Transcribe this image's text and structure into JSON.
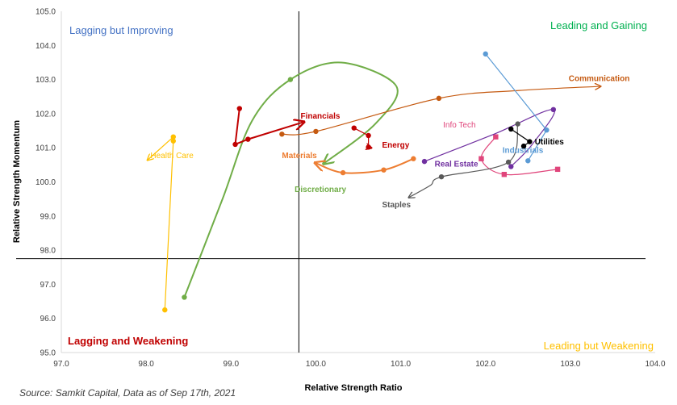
{
  "chart_data": {
    "type": "scatter",
    "title": "",
    "xlabel": "Relative Strength Ratio",
    "ylabel": "Relative Strength Momentum",
    "xlim": [
      97.0,
      104.0
    ],
    "ylim": [
      95.0,
      105.0
    ],
    "xticks": [
      "97.0",
      "98.0",
      "99.0",
      "100.0",
      "101.0",
      "102.0",
      "103.0",
      "104.0"
    ],
    "yticks": [
      "95.0",
      "96.0",
      "97.0",
      "98.0",
      "99.0",
      "100.0",
      "101.0",
      "102.0",
      "103.0",
      "104.0",
      "105.0"
    ],
    "crosshair": {
      "x": 99.8,
      "y": 97.75
    },
    "grid": false,
    "quadrants": [
      {
        "name": "Lagging but Improving",
        "position": "top-left",
        "color": "#4472C4"
      },
      {
        "name": "Leading and Gaining",
        "position": "top-right",
        "color": "#00B050"
      },
      {
        "name": "Lagging and Weakening",
        "position": "bottom-left",
        "color": "#C00000"
      },
      {
        "name": "Leading but Weakening",
        "position": "bottom-right",
        "color": "#FFC000"
      }
    ],
    "series": [
      {
        "name": "Health Care",
        "color": "#FFC000",
        "marker": "circle",
        "points": [
          [
            98.22,
            96.25
          ],
          [
            98.32,
            101.2
          ],
          [
            98.32,
            101.32
          ]
        ],
        "arrow_end": [
          98.02,
          100.65
        ],
        "label_at": [
          98.05,
          100.7
        ]
      },
      {
        "name": "Discretionary",
        "color": "#70AD47",
        "marker": "circle",
        "points": [
          [
            98.45,
            96.62
          ],
          [
            99.7,
            103.0
          ]
        ],
        "arrow_end": [
          100.1,
          100.55
        ],
        "label_at": [
          99.75,
          99.7
        ]
      },
      {
        "name": "Financials",
        "color": "#C00000",
        "marker": "circle",
        "points": [
          [
            99.1,
            102.15
          ],
          [
            99.05,
            101.1
          ],
          [
            99.2,
            101.25
          ]
        ],
        "arrow_end": [
          99.85,
          101.75
        ],
        "label_at": [
          99.82,
          101.85
        ]
      },
      {
        "name": "Communication",
        "color": "#C55A11",
        "marker": "circle",
        "points": [
          [
            99.6,
            101.4
          ],
          [
            100.0,
            101.48
          ],
          [
            101.45,
            102.45
          ]
        ],
        "arrow_end": [
          103.35,
          102.8
        ],
        "label_at": [
          102.98,
          102.95
        ]
      },
      {
        "name": "Energy",
        "color": "#C00000",
        "marker": "circle",
        "points": [
          [
            100.45,
            101.58
          ],
          [
            100.62,
            101.36
          ],
          [
            100.62,
            101.02
          ]
        ],
        "arrow_end": [
          100.65,
          101.0
        ],
        "label_at": [
          100.78,
          101.0
        ]
      },
      {
        "name": "Materials",
        "color": "#ED7D31",
        "marker": "circle",
        "points": [
          [
            101.15,
            100.68
          ],
          [
            100.8,
            100.35
          ],
          [
            100.32,
            100.27
          ]
        ],
        "arrow_end": [
          100.0,
          100.55
        ],
        "label_at": [
          99.6,
          100.7
        ]
      },
      {
        "name": "Info Tech",
        "color": "#E0457B",
        "marker": "square",
        "points": [
          [
            102.85,
            100.37
          ],
          [
            102.22,
            100.22
          ],
          [
            101.95,
            100.68
          ],
          [
            102.12,
            101.32
          ]
        ],
        "arrow_end": null,
        "label_at": [
          101.5,
          101.6
        ]
      },
      {
        "name": "Real Estate",
        "color": "#7030A0",
        "marker": "circle",
        "points": [
          [
            101.28,
            100.6
          ],
          [
            102.8,
            102.12
          ],
          [
            102.3,
            100.45
          ]
        ],
        "arrow_end": null,
        "label_at": [
          101.4,
          100.45
        ]
      },
      {
        "name": "Staples",
        "color": "#595959",
        "marker": "circle",
        "points": [
          [
            101.48,
            100.15
          ],
          [
            102.27,
            100.58
          ],
          [
            102.38,
            101.7
          ]
        ],
        "arrow_end": [
          101.1,
          99.55
        ],
        "label_at": [
          100.78,
          99.25
        ]
      },
      {
        "name": "Industrials",
        "color": "#5B9BD5",
        "marker": "circle",
        "points": [
          [
            102.0,
            103.75
          ],
          [
            102.72,
            101.52
          ],
          [
            102.5,
            100.62
          ]
        ],
        "arrow_end": null,
        "label_at": [
          102.2,
          100.85
        ]
      },
      {
        "name": "Utilities",
        "color": "#000000",
        "marker": "circle",
        "points": [
          [
            102.3,
            101.55
          ],
          [
            102.52,
            101.18
          ],
          [
            102.45,
            101.05
          ]
        ],
        "arrow_end": null,
        "label_at": [
          102.58,
          101.1
        ]
      }
    ],
    "source": "Source: Samkit Capital, Data as of Sep 17th, 2021"
  }
}
